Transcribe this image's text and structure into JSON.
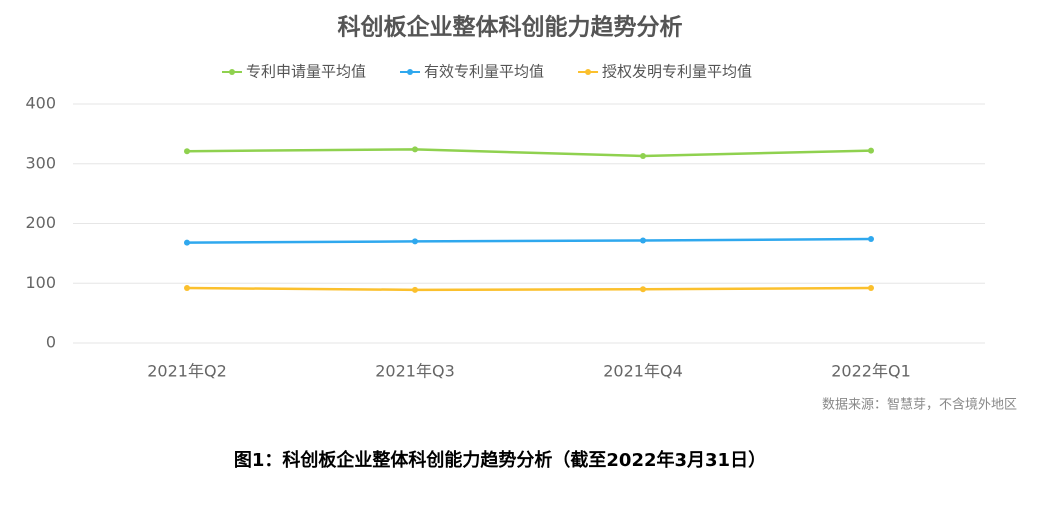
{
  "chart_data": {
    "type": "line",
    "title": "科创板企业整体科创能力趋势分析",
    "categories": [
      "2021年Q2",
      "2021年Q3",
      "2021年Q4",
      "2022年Q1"
    ],
    "series": [
      {
        "name": "专利申请量平均值",
        "color": "#8fd14f",
        "values": [
          321,
          324,
          313,
          322
        ]
      },
      {
        "name": "有效专利量平均值",
        "color": "#2fa8ee",
        "values": [
          168,
          170,
          171.5,
          174
        ]
      },
      {
        "name": "授权发明专利量平均值",
        "color": "#fbc02d",
        "values": [
          92,
          89,
          90,
          92
        ]
      }
    ],
    "ylim": [
      0,
      400
    ],
    "yticks": [
      0,
      100,
      200,
      300,
      400
    ],
    "grid": true,
    "legend": "top",
    "source": "数据来源：智慧芽，不含境外地区",
    "caption": "图1：科创板企业整体科创能力趋势分析（截至2022年3月31日）"
  }
}
